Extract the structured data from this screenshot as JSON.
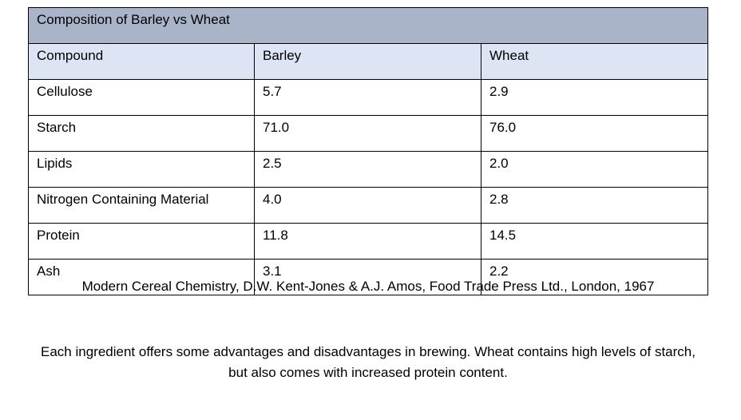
{
  "table": {
    "title": "Composition of Barley vs Wheat",
    "headers": [
      "Compound",
      "Barley",
      "Wheat"
    ],
    "rows": [
      [
        "Cellulose",
        "5.7",
        "2.9"
      ],
      [
        "Starch",
        "71.0",
        "76.0"
      ],
      [
        "Lipids",
        "2.5",
        "2.0"
      ],
      [
        "Nitrogen Containing Material",
        "4.0",
        "2.8"
      ],
      [
        "Protein",
        "11.8",
        "14.5"
      ],
      [
        "Ash",
        "3.1",
        "2.2"
      ]
    ],
    "colors": {
      "title_bg": "#aab4c9",
      "header_bg": "#dde4f3"
    }
  },
  "citation": "Modern Cereal Chemistry, D.W. Kent-Jones & A.J. Amos, Food Trade Press Ltd., London, 1967",
  "paragraph": "Each ingredient offers some advantages and disadvantages in brewing. Wheat contains high levels of starch, but also comes with increased protein content."
}
